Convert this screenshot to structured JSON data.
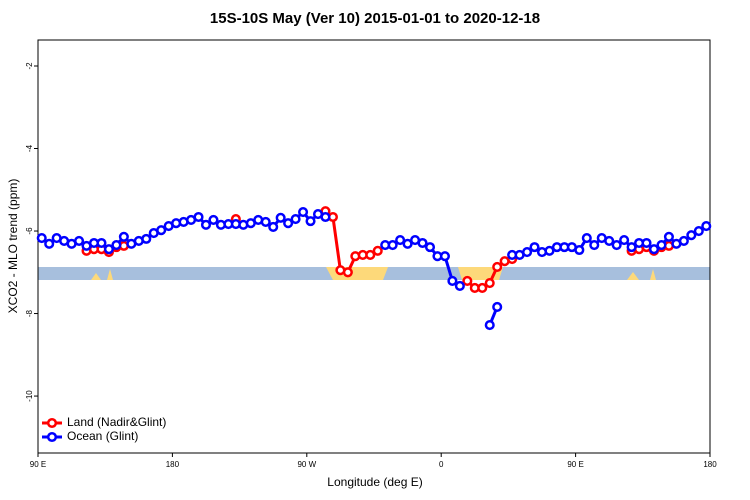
{
  "chart_data": {
    "type": "line",
    "title": "15S-10S May (Ver 10)   2015-01-01 to 2020-12-18",
    "x_label": "Longitude (deg E)",
    "y_label": "XCO2 - MLO trend (ppm)",
    "xlim": [
      90,
      540
    ],
    "ylim": [
      -11.38,
      -1.37
    ],
    "xticks": [
      {
        "value": 90,
        "label": "90 E"
      },
      180,
      {
        "value": 270,
        "label": "90 W"
      },
      {
        "value": 360,
        "label": "0"
      },
      {
        "value": 450,
        "label": "90 E"
      },
      {
        "value": 540,
        "label": "180"
      }
    ],
    "yticks": [
      -2,
      -4,
      -6,
      -8,
      -10
    ],
    "legend": "bottom-left",
    "x": [
      92.5,
      97.5,
      102.5,
      107.5,
      112.5,
      117.5,
      122.5,
      127.5,
      132.5,
      137.5,
      142.5,
      147.5,
      152.5,
      157.5,
      162.5,
      167.5,
      172.5,
      177.5,
      182.5,
      187.5,
      192.5,
      197.5,
      202.5,
      207.5,
      212.5,
      217.5,
      222.5,
      227.5,
      232.5,
      237.5,
      242.5,
      247.5,
      252.5,
      257.5,
      262.5,
      267.5,
      272.5,
      277.5,
      282.5,
      287.5,
      292.5,
      297.5,
      302.5,
      307.5,
      312.5,
      317.5,
      322.5,
      327.5,
      332.5,
      337.5,
      342.5,
      347.5,
      352.5,
      357.5,
      362.5,
      367.5,
      372.5,
      377.5,
      382.5,
      387.5,
      392.5,
      397.5,
      402.5,
      407.5,
      412.5,
      417.5,
      422.5,
      427.5,
      432.5,
      437.5,
      442.5,
      447.5,
      452.5,
      457.5,
      462.5,
      467.5,
      472.5,
      477.5,
      482.5,
      487.5,
      492.5,
      497.5,
      502.5,
      507.5,
      512.5,
      517.5,
      522.5,
      527.5,
      532.5,
      537.5
    ],
    "series": [
      {
        "name": "Land (Nadir&Glint)",
        "color": "#ff0000",
        "values": [
          null,
          null,
          null,
          null,
          null,
          null,
          -6.48,
          -6.44,
          -6.44,
          -6.51,
          -6.39,
          -6.36,
          null,
          null,
          null,
          null,
          null,
          null,
          null,
          null,
          null,
          null,
          null,
          null,
          null,
          null,
          -5.71,
          null,
          null,
          null,
          null,
          null,
          null,
          null,
          null,
          null,
          null,
          null,
          -5.52,
          -5.66,
          -6.95,
          -7.0,
          -6.61,
          -6.58,
          -6.58,
          -6.48,
          null,
          null,
          null,
          null,
          null,
          null,
          null,
          null,
          null,
          null,
          null,
          -7.21,
          -7.38,
          -7.38,
          -7.26,
          -6.87,
          -6.73,
          -6.68,
          null,
          null,
          null,
          null,
          null,
          null,
          null,
          null,
          null,
          null,
          null,
          null,
          null,
          null,
          null,
          -6.48,
          -6.44,
          -6.39,
          -6.48,
          -6.39,
          -6.36,
          null,
          null,
          null,
          null,
          null
        ]
      },
      {
        "name": "Ocean (Glint)",
        "color": "#0000ff",
        "values": [
          -6.17,
          -6.31,
          -6.17,
          -6.24,
          -6.31,
          -6.24,
          -6.36,
          -6.29,
          -6.29,
          -6.44,
          -6.34,
          -6.14,
          -6.31,
          -6.24,
          -6.19,
          -6.05,
          -5.98,
          -5.88,
          -5.81,
          -5.78,
          -5.73,
          -5.66,
          -5.85,
          -5.73,
          -5.85,
          -5.83,
          -5.83,
          -5.85,
          -5.81,
          -5.73,
          -5.78,
          -5.9,
          -5.68,
          -5.81,
          -5.71,
          -5.54,
          -5.76,
          -5.59,
          -5.66,
          null,
          null,
          null,
          null,
          null,
          null,
          null,
          -6.34,
          -6.34,
          -6.22,
          -6.31,
          -6.22,
          -6.29,
          -6.39,
          -6.61,
          -6.61,
          -7.21,
          -7.33,
          null,
          null,
          null,
          -8.28,
          -7.84,
          null,
          -6.58,
          -6.58,
          -6.51,
          -6.39,
          -6.51,
          -6.48,
          -6.39,
          -6.39,
          -6.39,
          -6.46,
          -6.17,
          -6.34,
          -6.17,
          -6.24,
          -6.34,
          -6.22,
          -6.39,
          -6.29,
          -6.29,
          -6.44,
          -6.34,
          -6.14,
          -6.31,
          -6.24,
          -6.1,
          -6.0,
          -5.88
        ]
      }
    ]
  }
}
